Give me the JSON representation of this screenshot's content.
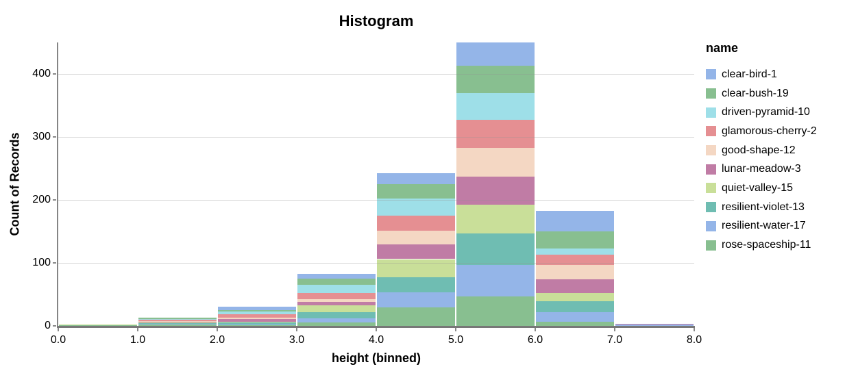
{
  "title": "Histogram",
  "x_axis": {
    "title": "height (binned)",
    "tick_labels": [
      "0.0",
      "1.0",
      "2.0",
      "3.0",
      "4.0",
      "5.0",
      "6.0",
      "7.0",
      "8.0"
    ]
  },
  "y_axis": {
    "title": "Count of Records",
    "tick_labels": [
      "0",
      "100",
      "200",
      "300",
      "400"
    ],
    "tick_values": [
      0,
      100,
      200,
      300,
      400
    ]
  },
  "legend": {
    "title": "name"
  },
  "chart_data": {
    "type": "bar",
    "subtype": "stacked-histogram",
    "title": "Histogram",
    "xlabel": "height (binned)",
    "ylabel": "Count of Records",
    "xlim": [
      0,
      8
    ],
    "ylim": [
      0,
      450
    ],
    "bin_edges": [
      0,
      1,
      2,
      3,
      4,
      5,
      6,
      7,
      8
    ],
    "grid": true,
    "legend_position": "right",
    "legend_title": "name",
    "stack_order_bottom_to_top": [
      "rose-spaceship-11",
      "resilient-water-17",
      "resilient-violet-13",
      "quiet-valley-15",
      "lunar-meadow-3",
      "good-shape-12",
      "glamorous-cherry-2",
      "driven-pyramid-10",
      "clear-bush-19",
      "clear-bird-1"
    ],
    "series": [
      {
        "name": "clear-bird-1",
        "color": "#94B5E8",
        "values": [
          0,
          0,
          5,
          8,
          17,
          37,
          33,
          1
        ]
      },
      {
        "name": "clear-bush-19",
        "color": "#88BF90",
        "values": [
          0,
          2,
          2,
          10,
          23,
          43,
          27,
          0
        ]
      },
      {
        "name": "driven-pyramid-10",
        "color": "#9EDFE8",
        "values": [
          0,
          1,
          5,
          13,
          27,
          43,
          10,
          0
        ]
      },
      {
        "name": "glamorous-cherry-2",
        "color": "#E58F92",
        "values": [
          0,
          2,
          5,
          10,
          24,
          44,
          16,
          0
        ]
      },
      {
        "name": "good-shape-12",
        "color": "#F4D7C3",
        "values": [
          0,
          1,
          2,
          4,
          22,
          46,
          23,
          0
        ]
      },
      {
        "name": "lunar-meadow-3",
        "color": "#C07CA5",
        "values": [
          0,
          1,
          4,
          5,
          23,
          45,
          22,
          1
        ]
      },
      {
        "name": "quiet-valley-15",
        "color": "#C9DF99",
        "values": [
          1,
          1,
          1,
          11,
          29,
          45,
          13,
          0
        ]
      },
      {
        "name": "resilient-violet-13",
        "color": "#6FBDB2",
        "values": [
          0,
          2,
          4,
          10,
          24,
          50,
          17,
          0
        ]
      },
      {
        "name": "resilient-water-17",
        "color": "#94B5E8",
        "values": [
          0,
          1,
          1,
          7,
          24,
          50,
          15,
          1
        ]
      },
      {
        "name": "rose-spaceship-11",
        "color": "#88BF90",
        "values": [
          1,
          2,
          1,
          5,
          29,
          47,
          7,
          0
        ]
      }
    ]
  }
}
